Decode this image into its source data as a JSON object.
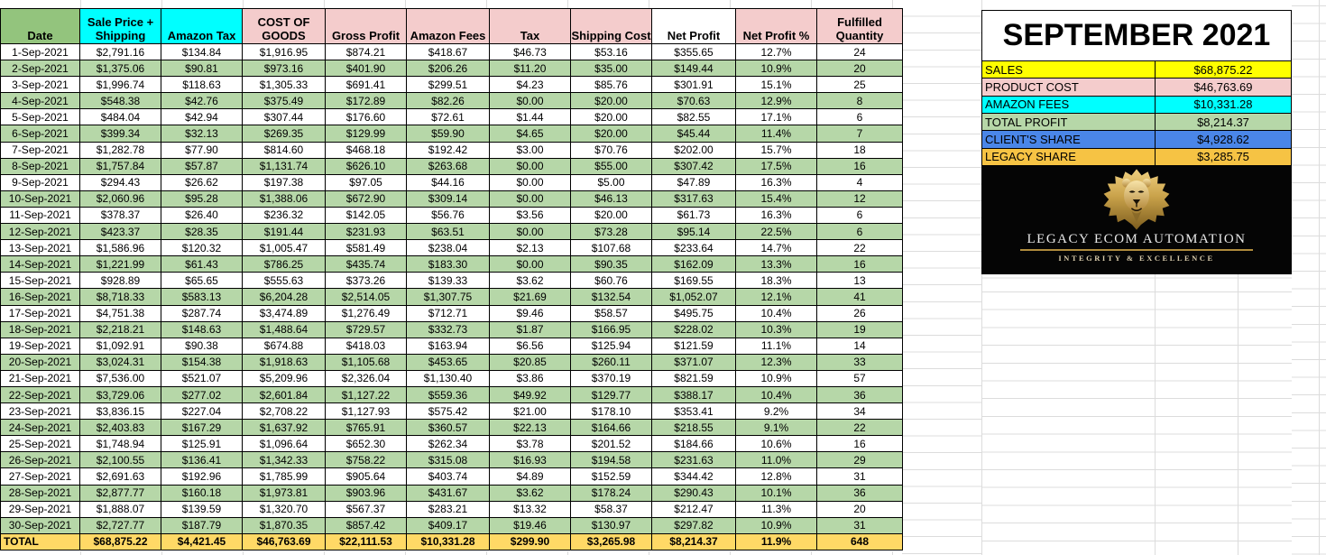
{
  "sheet": {
    "table": {
      "columns": [
        {
          "label": "Date",
          "color": "green"
        },
        {
          "label": "Sale Price + Shipping",
          "color": "cyan"
        },
        {
          "label": "Amazon Tax",
          "color": "cyan"
        },
        {
          "label": "COST OF GOODS",
          "color": "pink"
        },
        {
          "label": "Gross Profit",
          "color": "pink"
        },
        {
          "label": "Amazon Fees",
          "color": "pink"
        },
        {
          "label": "Tax",
          "color": "pink"
        },
        {
          "label": "Shipping Cost",
          "color": "pink"
        },
        {
          "label": "Net Profit",
          "color": "white"
        },
        {
          "label": "Net Profit %",
          "color": "pink"
        },
        {
          "label": "Fulfilled Quantity",
          "color": "pink"
        }
      ],
      "rows": [
        [
          "1-Sep-2021",
          "$2,791.16",
          "$134.84",
          "$1,916.95",
          "$874.21",
          "$418.67",
          "$46.73",
          "$53.16",
          "$355.65",
          "12.7%",
          "24"
        ],
        [
          "2-Sep-2021",
          "$1,375.06",
          "$90.81",
          "$973.16",
          "$401.90",
          "$206.26",
          "$11.20",
          "$35.00",
          "$149.44",
          "10.9%",
          "20"
        ],
        [
          "3-Sep-2021",
          "$1,996.74",
          "$118.63",
          "$1,305.33",
          "$691.41",
          "$299.51",
          "$4.23",
          "$85.76",
          "$301.91",
          "15.1%",
          "25"
        ],
        [
          "4-Sep-2021",
          "$548.38",
          "$42.76",
          "$375.49",
          "$172.89",
          "$82.26",
          "$0.00",
          "$20.00",
          "$70.63",
          "12.9%",
          "8"
        ],
        [
          "5-Sep-2021",
          "$484.04",
          "$42.94",
          "$307.44",
          "$176.60",
          "$72.61",
          "$1.44",
          "$20.00",
          "$82.55",
          "17.1%",
          "6"
        ],
        [
          "6-Sep-2021",
          "$399.34",
          "$32.13",
          "$269.35",
          "$129.99",
          "$59.90",
          "$4.65",
          "$20.00",
          "$45.44",
          "11.4%",
          "7"
        ],
        [
          "7-Sep-2021",
          "$1,282.78",
          "$77.90",
          "$814.60",
          "$468.18",
          "$192.42",
          "$3.00",
          "$70.76",
          "$202.00",
          "15.7%",
          "18"
        ],
        [
          "8-Sep-2021",
          "$1,757.84",
          "$57.87",
          "$1,131.74",
          "$626.10",
          "$263.68",
          "$0.00",
          "$55.00",
          "$307.42",
          "17.5%",
          "16"
        ],
        [
          "9-Sep-2021",
          "$294.43",
          "$26.62",
          "$197.38",
          "$97.05",
          "$44.16",
          "$0.00",
          "$5.00",
          "$47.89",
          "16.3%",
          "4"
        ],
        [
          "10-Sep-2021",
          "$2,060.96",
          "$95.28",
          "$1,388.06",
          "$672.90",
          "$309.14",
          "$0.00",
          "$46.13",
          "$317.63",
          "15.4%",
          "12"
        ],
        [
          "11-Sep-2021",
          "$378.37",
          "$26.40",
          "$236.32",
          "$142.05",
          "$56.76",
          "$3.56",
          "$20.00",
          "$61.73",
          "16.3%",
          "6"
        ],
        [
          "12-Sep-2021",
          "$423.37",
          "$28.35",
          "$191.44",
          "$231.93",
          "$63.51",
          "$0.00",
          "$73.28",
          "$95.14",
          "22.5%",
          "6"
        ],
        [
          "13-Sep-2021",
          "$1,586.96",
          "$120.32",
          "$1,005.47",
          "$581.49",
          "$238.04",
          "$2.13",
          "$107.68",
          "$233.64",
          "14.7%",
          "22"
        ],
        [
          "14-Sep-2021",
          "$1,221.99",
          "$61.43",
          "$786.25",
          "$435.74",
          "$183.30",
          "$0.00",
          "$90.35",
          "$162.09",
          "13.3%",
          "16"
        ],
        [
          "15-Sep-2021",
          "$928.89",
          "$65.65",
          "$555.63",
          "$373.26",
          "$139.33",
          "$3.62",
          "$60.76",
          "$169.55",
          "18.3%",
          "13"
        ],
        [
          "16-Sep-2021",
          "$8,718.33",
          "$583.13",
          "$6,204.28",
          "$2,514.05",
          "$1,307.75",
          "$21.69",
          "$132.54",
          "$1,052.07",
          "12.1%",
          "41"
        ],
        [
          "17-Sep-2021",
          "$4,751.38",
          "$287.74",
          "$3,474.89",
          "$1,276.49",
          "$712.71",
          "$9.46",
          "$58.57",
          "$495.75",
          "10.4%",
          "26"
        ],
        [
          "18-Sep-2021",
          "$2,218.21",
          "$148.63",
          "$1,488.64",
          "$729.57",
          "$332.73",
          "$1.87",
          "$166.95",
          "$228.02",
          "10.3%",
          "19"
        ],
        [
          "19-Sep-2021",
          "$1,092.91",
          "$90.38",
          "$674.88",
          "$418.03",
          "$163.94",
          "$6.56",
          "$125.94",
          "$121.59",
          "11.1%",
          "14"
        ],
        [
          "20-Sep-2021",
          "$3,024.31",
          "$154.38",
          "$1,918.63",
          "$1,105.68",
          "$453.65",
          "$20.85",
          "$260.11",
          "$371.07",
          "12.3%",
          "33"
        ],
        [
          "21-Sep-2021",
          "$7,536.00",
          "$521.07",
          "$5,209.96",
          "$2,326.04",
          "$1,130.40",
          "$3.86",
          "$370.19",
          "$821.59",
          "10.9%",
          "57"
        ],
        [
          "22-Sep-2021",
          "$3,729.06",
          "$277.02",
          "$2,601.84",
          "$1,127.22",
          "$559.36",
          "$49.92",
          "$129.77",
          "$388.17",
          "10.4%",
          "36"
        ],
        [
          "23-Sep-2021",
          "$3,836.15",
          "$227.04",
          "$2,708.22",
          "$1,127.93",
          "$575.42",
          "$21.00",
          "$178.10",
          "$353.41",
          "9.2%",
          "34"
        ],
        [
          "24-Sep-2021",
          "$2,403.83",
          "$167.29",
          "$1,637.92",
          "$765.91",
          "$360.57",
          "$22.13",
          "$164.66",
          "$218.55",
          "9.1%",
          "22"
        ],
        [
          "25-Sep-2021",
          "$1,748.94",
          "$125.91",
          "$1,096.64",
          "$652.30",
          "$262.34",
          "$3.78",
          "$201.52",
          "$184.66",
          "10.6%",
          "16"
        ],
        [
          "26-Sep-2021",
          "$2,100.55",
          "$136.41",
          "$1,342.33",
          "$758.22",
          "$315.08",
          "$16.93",
          "$194.58",
          "$231.63",
          "11.0%",
          "29"
        ],
        [
          "27-Sep-2021",
          "$2,691.63",
          "$192.96",
          "$1,785.99",
          "$905.64",
          "$403.74",
          "$4.89",
          "$152.59",
          "$344.42",
          "12.8%",
          "31"
        ],
        [
          "28-Sep-2021",
          "$2,877.77",
          "$160.18",
          "$1,973.81",
          "$903.96",
          "$431.67",
          "$3.62",
          "$178.24",
          "$290.43",
          "10.1%",
          "36"
        ],
        [
          "29-Sep-2021",
          "$1,888.07",
          "$139.59",
          "$1,320.70",
          "$567.37",
          "$283.21",
          "$13.32",
          "$58.37",
          "$212.47",
          "11.3%",
          "20"
        ],
        [
          "30-Sep-2021",
          "$2,727.77",
          "$187.79",
          "$1,870.35",
          "$857.42",
          "$409.17",
          "$19.46",
          "$130.97",
          "$297.82",
          "10.9%",
          "31"
        ]
      ],
      "total_row": [
        "TOTAL",
        "$68,875.22",
        "$4,421.45",
        "$46,763.69",
        "$22,111.53",
        "$10,331.28",
        "$299.90",
        "$3,265.98",
        "$8,214.37",
        "11.9%",
        "648"
      ]
    },
    "summary": {
      "title": "SEPTEMBER 2021",
      "items": [
        {
          "label": "SALES",
          "value": "$68,875.22",
          "color": "#ffff00"
        },
        {
          "label": "PRODUCT COST",
          "value": "$46,763.69",
          "color": "#f4cccc"
        },
        {
          "label": "AMAZON FEES",
          "value": "$10,331.28",
          "color": "#00ffff"
        },
        {
          "label": "TOTAL PROFIT",
          "value": "$8,214.37",
          "color": "#b6d7a8"
        },
        {
          "label": "CLIENT'S SHARE",
          "value": "$4,928.62",
          "color": "#4a86e8"
        },
        {
          "label": "LEGACY SHARE",
          "value": "$3,285.75",
          "color": "#f6c344"
        }
      ]
    },
    "logo": {
      "title": "LEGACY ECOM AUTOMATION",
      "subtitle": "INTEGRITY & EXCELLENCE",
      "icon": "lion-icon"
    },
    "colors": {
      "header_green": "#93c47d",
      "row_green": "#b6d7a8",
      "header_cyan": "#00ffff",
      "header_pink": "#f4cccc",
      "total_yellow": "#ffd966",
      "panel_yellow": "#ffff00",
      "panel_blue": "#4a86e8",
      "panel_gold": "#f6c344",
      "gridline_gray": "#dcdcdc",
      "logo_gold": "#b08c3d"
    }
  }
}
